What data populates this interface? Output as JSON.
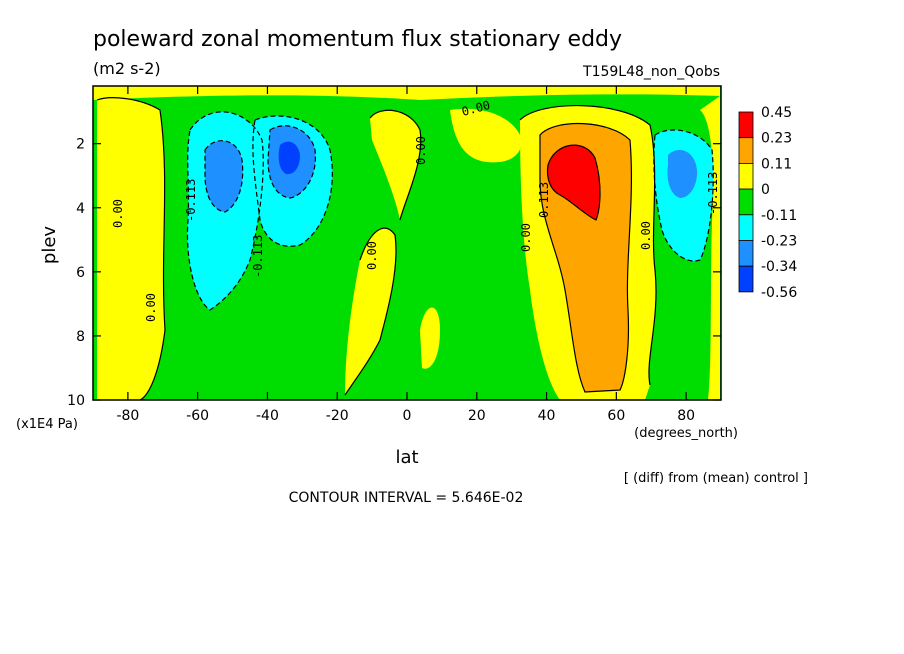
{
  "chart_data": {
    "type": "heatmap",
    "title": "poleward zonal momentum flux stationary eddy",
    "units": "(m2 s-2)",
    "run_label": "T159L48_non_Qobs",
    "xlabel": "lat",
    "x_units": "(degrees_north)",
    "ylabel": "plev",
    "y_units": "(x1E4 Pa)",
    "xlim": [
      -90,
      90
    ],
    "ylim": [
      10,
      0.2
    ],
    "x_ticks": [
      -80,
      -60,
      -40,
      -20,
      0,
      20,
      40,
      60,
      80
    ],
    "y_ticks": [
      2,
      4,
      6,
      8,
      10
    ],
    "colorbar": {
      "levels": [
        "0.45",
        "0.23",
        "0.11",
        "0",
        "-0.11",
        "-0.23",
        "-0.34",
        "-0.56"
      ],
      "colors": [
        "#ff0000",
        "#ffa500",
        "#ffff00",
        "#00dd00",
        "#00ffff",
        "#1e90ff",
        "#0040ff"
      ]
    },
    "contour_labels": [
      "0.00",
      "-0.113",
      "0.113"
    ],
    "note": "[ (diff) from (mean) control ]",
    "contour_interval": "CONTOUR INTERVAL = 5.646E-02",
    "features": [
      {
        "lat": -35,
        "plev": 2.4,
        "value": -0.45
      },
      {
        "lat": -55,
        "plev": 3.0,
        "value": -0.3
      },
      {
        "lat": 48,
        "plev": 2.8,
        "value": 0.4
      },
      {
        "lat": 55,
        "plev": 5.0,
        "value": 0.15
      },
      {
        "lat": 80,
        "plev": 3.0,
        "value": -0.25
      },
      {
        "lat": -78,
        "plev": 6.0,
        "value": 0.02
      },
      {
        "lat": 0,
        "plev": 3.0,
        "value": 0.02
      }
    ]
  }
}
